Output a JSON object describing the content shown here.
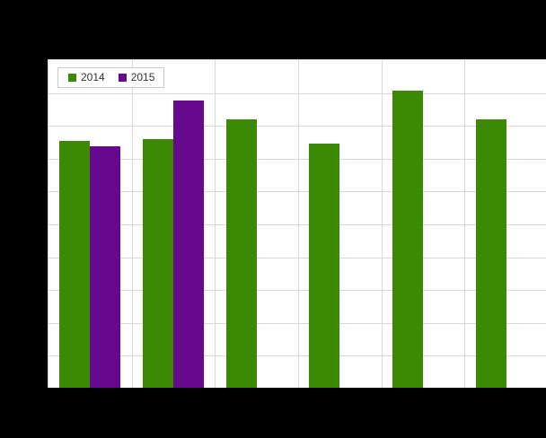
{
  "background_color": "#000000",
  "plot": {
    "bg": "#ffffff",
    "border_color": "#d8d8d8",
    "grid_color": "#d8d8d8"
  },
  "legend": {
    "bg": "#ffffff",
    "border_color": "#cccccc",
    "text_color": "#333333"
  },
  "chart_data": {
    "type": "bar",
    "title": "",
    "xlabel": "",
    "ylabel": "",
    "categories": [
      "",
      "",
      "",
      "",
      "",
      ""
    ],
    "series": [
      {
        "name": "2014",
        "color": "#3c8a04",
        "values": [
          75.1,
          75.8,
          81.8,
          74.4,
          90.5,
          81.8
        ]
      },
      {
        "name": "2015",
        "color": "#66098c",
        "values": [
          73.6,
          87.4,
          null,
          null,
          null,
          null
        ]
      }
    ],
    "ylim": [
      0,
      100
    ],
    "y_gridline_step": 10,
    "x_divisions": 6,
    "grid": true,
    "legend_position": "top-left",
    "axis_tick_labels_visible": false
  }
}
